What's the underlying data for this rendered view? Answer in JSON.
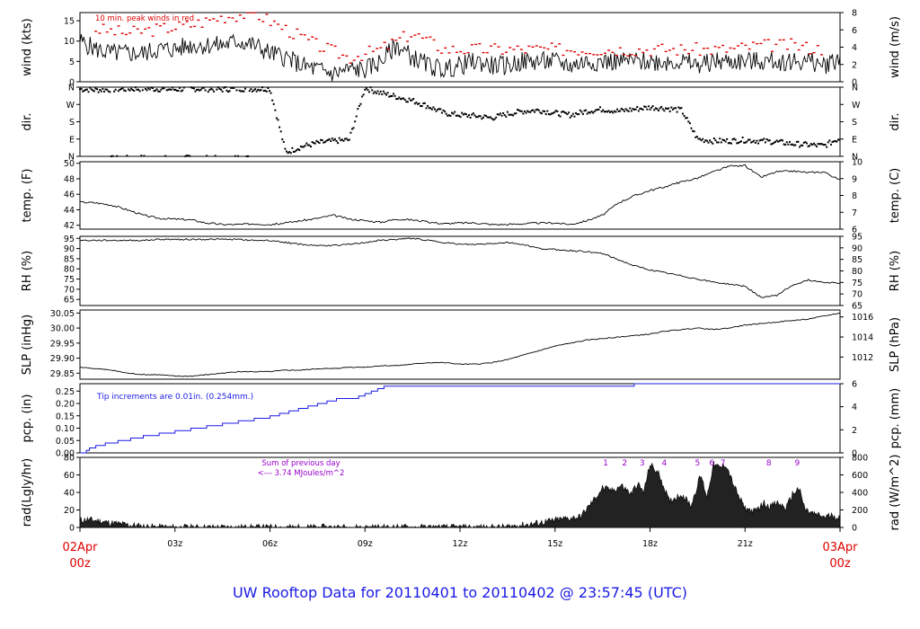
{
  "colors": {
    "frame": "#000000",
    "data": "#000000",
    "peak": "#e00000",
    "precip": "#1a1ae6",
    "radiation_note": "#9900cc",
    "date_label": "#e00000",
    "footer": "#1a1ae6"
  },
  "footer": {
    "title": "UW Rooftop Data for 20110401  to  20110402 @ 23:57:45  (UTC)"
  },
  "x_axis": {
    "range_hours": [
      0,
      24
    ],
    "ticks": [
      {
        "hour": 3,
        "label": "03z"
      },
      {
        "hour": 6,
        "label": "06z"
      },
      {
        "hour": 9,
        "label": "09z"
      },
      {
        "hour": 12,
        "label": "12z"
      },
      {
        "hour": 15,
        "label": "15z"
      },
      {
        "hour": 18,
        "label": "18z"
      },
      {
        "hour": 21,
        "label": "21z"
      }
    ],
    "start": {
      "date": "02Apr",
      "time": "00z"
    },
    "end": {
      "date": "03Apr",
      "time": "00z"
    }
  },
  "chart_data": [
    {
      "type": "line",
      "id": "wind",
      "ylabel_left": "wind (kts)",
      "ylabel_right": "wind (m/s)",
      "ylim": [
        0,
        17
      ],
      "ticks_left": [
        "0",
        "5",
        "10",
        "15"
      ],
      "ticks_right": [
        "0",
        "2",
        "4",
        "6",
        "8"
      ],
      "annotation": "10 min. peak winds in red",
      "series": [
        {
          "x": [
            0,
            0.5,
            1,
            1.5,
            2,
            2.5,
            3,
            3.5,
            4,
            4.5,
            5,
            5.5,
            6,
            6.5,
            7,
            7.5,
            8,
            8.5,
            9,
            9.5,
            10,
            10.5,
            11,
            11.5,
            12,
            12.5,
            13,
            13.5,
            14,
            14.5,
            15,
            15.5,
            16,
            16.5,
            17,
            17.5,
            18,
            18.5,
            19,
            19.5,
            20,
            20.5,
            21,
            21.5,
            22,
            22.5,
            23,
            23.5,
            24
          ],
          "y": [
            10,
            8,
            7,
            7,
            7,
            8,
            8,
            9,
            9,
            9,
            10,
            9,
            7,
            6,
            4,
            3,
            2,
            3,
            3,
            5,
            9,
            6,
            4,
            3,
            4,
            5,
            4,
            4,
            5,
            5,
            5,
            4,
            5,
            5,
            5,
            5,
            5,
            5,
            5,
            4,
            5,
            5,
            5,
            5,
            5,
            5,
            5,
            4,
            6
          ]
        }
      ],
      "peaks": {
        "x": [
          0.5,
          1.5,
          2.5,
          3.5,
          4.5,
          5.5,
          6.5,
          7.5,
          8.5,
          9.5,
          10.5,
          11.5,
          12.5,
          13.5,
          14.5,
          15.5,
          16.5,
          17.5,
          18.5,
          19.5,
          20.5,
          21.5,
          22.5,
          23.5
        ],
        "y": [
          13,
          12,
          13,
          14,
          16,
          17,
          13,
          9,
          6,
          8,
          12,
          8,
          8,
          8,
          8,
          8,
          8,
          8,
          8,
          8,
          8,
          9,
          9,
          8
        ]
      }
    },
    {
      "type": "scatter",
      "id": "direction",
      "ylabel_left": "dir.",
      "ylabel_right": "dir.",
      "ylim": [
        0,
        360
      ],
      "ticks_left": [
        "N",
        "E",
        "S",
        "W",
        "N"
      ],
      "ticks_right": [
        "N",
        "E",
        "S",
        "W",
        "N"
      ],
      "series": [
        {
          "x": [
            0,
            0.5,
            1,
            1.5,
            2,
            2.5,
            3,
            3.5,
            4,
            4.5,
            5,
            5.5,
            6,
            6.5,
            7,
            7.5,
            8,
            8.5,
            9,
            9.5,
            10,
            10.5,
            11,
            11.5,
            12,
            12.5,
            13,
            13.5,
            14,
            14.5,
            15,
            15.5,
            16,
            16.5,
            17,
            17.5,
            18,
            18.5,
            19,
            19.5,
            20,
            20.5,
            21,
            21.5,
            22,
            22.5,
            23,
            23.5,
            24
          ],
          "y": [
            350,
            345,
            348,
            350,
            352,
            350,
            348,
            352,
            350,
            348,
            352,
            350,
            352,
            20,
            50,
            70,
            80,
            85,
            355,
            330,
            310,
            290,
            260,
            225,
            215,
            210,
            200,
            220,
            235,
            240,
            225,
            215,
            235,
            245,
            235,
            245,
            255,
            250,
            240,
            90,
            80,
            80,
            85,
            80,
            75,
            65,
            60,
            55,
            95
          ]
        }
      ]
    },
    {
      "type": "line",
      "id": "temperature",
      "ylabel_left": "temp. (F)",
      "ylabel_right": "temp. (C)",
      "ylim": [
        41.5,
        50.2
      ],
      "ticks_left": [
        "42",
        "44",
        "46",
        "48",
        "50"
      ],
      "ticks_right": [
        "6",
        "7",
        "8",
        "9",
        "10"
      ],
      "series": [
        {
          "x": [
            0,
            0.5,
            1,
            1.5,
            2,
            2.5,
            3,
            3.5,
            4,
            4.5,
            5,
            5.5,
            6,
            6.5,
            7,
            7.5,
            8,
            8.5,
            9,
            9.5,
            10,
            10.5,
            11,
            11.5,
            12,
            12.5,
            13,
            13.5,
            14,
            14.5,
            15,
            15.5,
            16,
            16.5,
            17,
            17.5,
            18,
            18.5,
            19,
            19.5,
            20,
            20.5,
            21,
            21.5,
            22,
            22.5,
            23,
            23.5,
            24
          ],
          "y": [
            45,
            44.9,
            44.6,
            44,
            43.3,
            42.9,
            42.8,
            42.7,
            42.3,
            42.1,
            42.1,
            42.2,
            42.1,
            42.3,
            42.6,
            42.9,
            43.3,
            42.8,
            42.6,
            42.4,
            42.8,
            42.7,
            42.4,
            42.2,
            42.3,
            42.3,
            42.1,
            42.1,
            42.2,
            42.3,
            42.3,
            42.1,
            42.6,
            43.3,
            44.9,
            45.8,
            46.5,
            47,
            47.6,
            48.1,
            48.9,
            49.6,
            49.7,
            48.2,
            48.9,
            49,
            48.8,
            48.9,
            47.8
          ]
        }
      ]
    },
    {
      "type": "line",
      "id": "humidity",
      "ylabel_left": "RH (%)",
      "ylabel_right": "RH (%)",
      "ylim": [
        62,
        96
      ],
      "ticks_left": [
        "65",
        "70",
        "75",
        "80",
        "85",
        "90",
        "95"
      ],
      "ticks_right": [
        "65",
        "70",
        "75",
        "80",
        "85",
        "90",
        "95"
      ],
      "series": [
        {
          "x": [
            0,
            0.5,
            1,
            1.5,
            2,
            2.5,
            3,
            3.5,
            4,
            4.5,
            5,
            5.5,
            6,
            6.5,
            7,
            7.5,
            8,
            8.5,
            9,
            9.5,
            10,
            10.5,
            11,
            11.5,
            12,
            12.5,
            13,
            13.5,
            14,
            14.5,
            15,
            15.5,
            16,
            16.5,
            17,
            17.5,
            18,
            18.5,
            19,
            19.5,
            20,
            20.5,
            21,
            21.5,
            22,
            22.5,
            23,
            23.5,
            24
          ],
          "y": [
            94,
            94,
            94,
            94,
            94,
            94.5,
            94.5,
            94.5,
            94.5,
            94.5,
            94.5,
            94,
            94,
            93,
            92,
            91.5,
            91.5,
            92,
            93,
            94,
            94.5,
            95,
            94,
            93,
            92,
            92,
            92.5,
            93,
            92,
            90,
            89.5,
            89,
            88.5,
            87.5,
            84.5,
            81.5,
            79.5,
            78,
            76.5,
            75,
            73.5,
            72.5,
            71.5,
            66,
            67,
            72,
            74.5,
            73.5,
            73
          ]
        }
      ]
    },
    {
      "type": "line",
      "id": "pressure",
      "ylabel_left": "SLP (inHg)",
      "ylabel_right": "SLP (hPa)",
      "ylim": [
        29.83,
        30.06
      ],
      "ticks_left": [
        "29.85",
        "29.90",
        "29.95",
        "30.00",
        "30.05"
      ],
      "ticks_right": [
        "1012",
        "1014",
        "1016"
      ],
      "series": [
        {
          "x": [
            0,
            0.5,
            1,
            1.5,
            2,
            2.5,
            3,
            3.5,
            4,
            4.5,
            5,
            5.5,
            6,
            6.5,
            7,
            7.5,
            8,
            8.5,
            9,
            9.5,
            10,
            10.5,
            11,
            11.5,
            12,
            12.5,
            13,
            13.5,
            14,
            14.5,
            15,
            15.5,
            16,
            16.5,
            17,
            17.5,
            18,
            18.5,
            19,
            19.5,
            20,
            20.5,
            21,
            21.5,
            22,
            22.5,
            23,
            23.5,
            24
          ],
          "y": [
            29.87,
            29.865,
            29.86,
            29.85,
            29.845,
            29.845,
            29.84,
            29.84,
            29.845,
            29.85,
            29.855,
            29.855,
            29.855,
            29.86,
            29.86,
            29.865,
            29.865,
            29.87,
            29.87,
            29.875,
            29.875,
            29.88,
            29.885,
            29.885,
            29.88,
            29.88,
            29.885,
            29.895,
            29.91,
            29.925,
            29.94,
            29.95,
            29.96,
            29.965,
            29.97,
            29.975,
            29.98,
            29.99,
            29.995,
            30.0,
            29.995,
            30.0,
            30.01,
            30.015,
            30.02,
            30.025,
            30.03,
            30.04,
            30.05
          ]
        }
      ]
    },
    {
      "type": "line",
      "id": "precipitation",
      "ylabel_left": "pcp. (in)",
      "ylabel_right": "pcp. (mm)",
      "ylim": [
        0,
        0.28
      ],
      "ticks_left": [
        "0.00",
        "0.05",
        "0.10",
        "0.15",
        "0.20",
        "0.25"
      ],
      "ticks_right": [
        "0",
        "2",
        "4",
        "6"
      ],
      "annotation": "Tip increments are 0.01in. (0.254mm.)",
      "series": [
        {
          "x": [
            0,
            0.2,
            0.3,
            0.5,
            0.8,
            1.2,
            1.6,
            2,
            2.5,
            3,
            3.5,
            4,
            4.5,
            5,
            5.5,
            6,
            6.3,
            6.6,
            6.9,
            7.2,
            7.5,
            7.8,
            8.1,
            8.5,
            8.8,
            9,
            9.2,
            9.4,
            9.6,
            10,
            12,
            15,
            17.4,
            17.5,
            20,
            22,
            24
          ],
          "y": [
            0,
            0.01,
            0.02,
            0.03,
            0.04,
            0.05,
            0.06,
            0.07,
            0.08,
            0.09,
            0.1,
            0.11,
            0.12,
            0.13,
            0.14,
            0.15,
            0.16,
            0.17,
            0.18,
            0.19,
            0.2,
            0.21,
            0.22,
            0.22,
            0.23,
            0.24,
            0.25,
            0.26,
            0.27,
            0.27,
            0.27,
            0.27,
            0.27,
            0.28,
            0.28,
            0.28,
            0.28
          ]
        }
      ]
    },
    {
      "type": "area",
      "id": "radiation",
      "ylabel_left": "rad(Lgly/hr)",
      "ylabel_right": "rad (W/m^2)",
      "ylim": [
        0,
        80
      ],
      "ticks_left": [
        "0",
        "20",
        "40",
        "60",
        "80"
      ],
      "ticks_right": [
        "0",
        "200",
        "400",
        "600",
        "800"
      ],
      "annotation_lines": [
        "Sum of previous day",
        "<--- 3.74 MJoules/m^2"
      ],
      "markers": [
        {
          "hour": 16.6,
          "label": "1"
        },
        {
          "hour": 17.2,
          "label": "2"
        },
        {
          "hour": 17.75,
          "label": "3"
        },
        {
          "hour": 18.45,
          "label": "4"
        },
        {
          "hour": 19.5,
          "label": "5"
        },
        {
          "hour": 19.95,
          "label": "6"
        },
        {
          "hour": 20.3,
          "label": "7"
        },
        {
          "hour": 21.75,
          "label": "8"
        },
        {
          "hour": 22.65,
          "label": "9"
        }
      ],
      "series": [
        {
          "x": [
            0,
            0.2,
            0.5,
            1,
            1.5,
            2,
            2.5,
            3,
            3.5,
            13.3,
            13.8,
            14.3,
            14.8,
            15.3,
            15.8,
            16.2,
            16.5,
            16.8,
            17.1,
            17.4,
            17.6,
            17.8,
            18,
            18.3,
            18.6,
            19,
            19.3,
            19.6,
            19.8,
            20,
            20.2,
            20.4,
            20.6,
            20.8,
            21,
            21.3,
            21.6,
            21.8,
            22,
            22.3,
            22.5,
            22.7,
            22.9,
            23.2,
            23.5,
            23.8,
            24
          ],
          "y": [
            8,
            9,
            8,
            5,
            3,
            1,
            0.5,
            0,
            0,
            0,
            2,
            4,
            7,
            10,
            12,
            30,
            45,
            42,
            48,
            38,
            50,
            40,
            72,
            60,
            30,
            38,
            25,
            60,
            35,
            72,
            68,
            72,
            52,
            35,
            22,
            18,
            28,
            24,
            28,
            22,
            38,
            45,
            20,
            15,
            12,
            14,
            10
          ]
        }
      ]
    }
  ]
}
